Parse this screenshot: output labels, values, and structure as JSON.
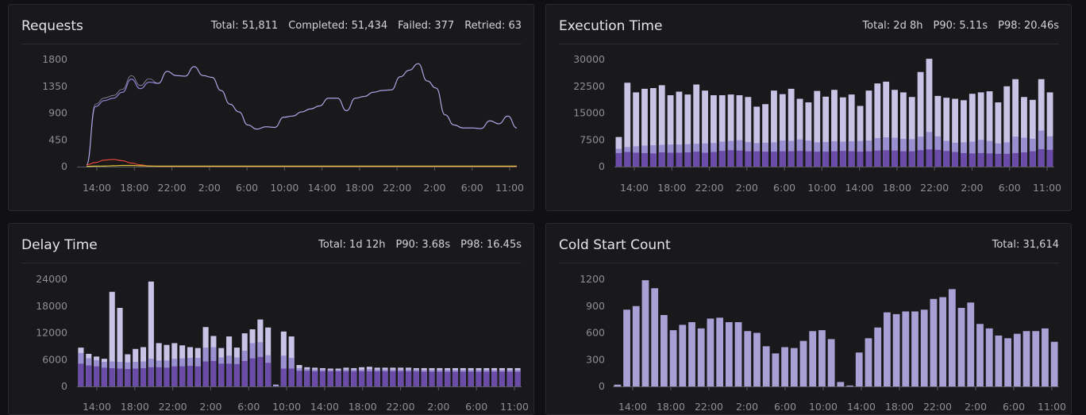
{
  "colors": {
    "background": "#111113",
    "panel": "#19191b",
    "requests_line": "#8d84d6",
    "failed_line": "#e0453a",
    "retried_line": "#e2c23a",
    "bar_light": "#c9c3e6",
    "bar_mid": "#9a8fd0",
    "bar_dark": "#6a4ba8",
    "cold_bar": "#a9a1d6"
  },
  "requests": {
    "title": "Requests",
    "stats": [
      "Total: 51,811",
      "Completed: 51,434",
      "Failed: 377",
      "Retried: 63"
    ],
    "chart_data": {
      "type": "line",
      "yticks": [
        "0",
        "450",
        "900",
        "1350",
        "1800"
      ],
      "xticks": [
        "14:00",
        "18:00",
        "22:00",
        "2:00",
        "6:00",
        "10:00",
        "14:00",
        "18:00",
        "22:00",
        "2:00",
        "6:00",
        "11:00"
      ],
      "ylim": [
        0,
        1800
      ],
      "series": [
        {
          "name": "Completed",
          "values": [
            30,
            1010,
            1110,
            1150,
            1250,
            1470,
            1310,
            1420,
            1400,
            1600,
            1530,
            1520,
            1680,
            1530,
            1500,
            1280,
            1050,
            920,
            700,
            630,
            670,
            660,
            830,
            850,
            920,
            970,
            1020,
            1150,
            1150,
            940,
            1150,
            1180,
            1250,
            1280,
            1290,
            1510,
            1620,
            1730,
            1440,
            1320,
            870,
            700,
            650,
            650,
            640,
            770,
            720,
            850,
            650
          ]
        },
        {
          "name": "Failed",
          "values": [
            30,
            70,
            110,
            120,
            100,
            60,
            30,
            10,
            5,
            5,
            5,
            5,
            5,
            5,
            5,
            5,
            5,
            5,
            5,
            5,
            5,
            5,
            5,
            5,
            5,
            5,
            5,
            5,
            5,
            5,
            5,
            5,
            5,
            5,
            5,
            5,
            5,
            5,
            5,
            5,
            5,
            5,
            5,
            5,
            5,
            5,
            5,
            5,
            5
          ]
        },
        {
          "name": "Retried",
          "values": [
            5,
            8,
            10,
            15,
            20,
            20,
            15,
            10,
            8,
            8,
            8,
            8,
            8,
            8,
            8,
            8,
            8,
            8,
            8,
            8,
            8,
            8,
            8,
            8,
            8,
            8,
            8,
            8,
            8,
            8,
            8,
            8,
            8,
            8,
            8,
            8,
            8,
            8,
            8,
            8,
            8,
            8,
            8,
            8,
            8,
            8,
            8,
            8,
            8
          ]
        }
      ]
    }
  },
  "execution": {
    "title": "Execution Time",
    "stats": [
      "Total: 2d 8h",
      "P90: 5.11s",
      "P98: 20.46s"
    ],
    "chart_data": {
      "type": "bar",
      "yticks": [
        "0",
        "7500",
        "15000",
        "22500",
        "30000"
      ],
      "xticks": [
        "14:00",
        "18:00",
        "22:00",
        "2:00",
        "6:00",
        "10:00",
        "14:00",
        "18:00",
        "22:00",
        "2:00",
        "6:00",
        "11:00"
      ],
      "ylim": [
        0,
        30000
      ],
      "stack_light": [
        8300,
        23500,
        20800,
        21800,
        22000,
        22800,
        20000,
        21000,
        20200,
        23000,
        21300,
        20000,
        20000,
        20200,
        20000,
        19500,
        16800,
        17500,
        21300,
        20300,
        21800,
        19000,
        18000,
        21200,
        19600,
        21500,
        19400,
        20200,
        17000,
        21300,
        23300,
        23800,
        21500,
        20800,
        19500,
        26500,
        30200,
        19800,
        19300,
        19000,
        18600,
        20400,
        20800,
        21100,
        18000,
        22500,
        24500,
        19500,
        18700,
        24500,
        20800
      ],
      "stack_mid": [
        5000,
        5500,
        5700,
        5900,
        6000,
        6100,
        6200,
        6200,
        6300,
        6400,
        6500,
        6600,
        7000,
        7200,
        7400,
        6900,
        6600,
        6700,
        6800,
        7300,
        7200,
        7600,
        7300,
        6800,
        6900,
        7100,
        7000,
        7100,
        7200,
        7300,
        8000,
        8200,
        8100,
        7800,
        7700,
        8400,
        9700,
        8500,
        7200,
        6700,
        6800,
        7000,
        7500,
        7200,
        6500,
        6800,
        8400,
        8100,
        7800,
        10100,
        8500
      ],
      "stack_dark": [
        3800,
        4100,
        3900,
        3800,
        3700,
        4000,
        3900,
        3900,
        4000,
        4200,
        3900,
        4100,
        4400,
        4600,
        4500,
        4300,
        4300,
        4200,
        4200,
        4300,
        4300,
        4400,
        4300,
        4200,
        4200,
        4300,
        4400,
        4300,
        4200,
        4300,
        4500,
        4600,
        4500,
        4300,
        4300,
        4600,
        4800,
        4700,
        4400,
        4100,
        3800,
        3700,
        3800,
        3700,
        3600,
        3600,
        3800,
        4000,
        4300,
        4900,
        4700
      ]
    }
  },
  "delay": {
    "title": "Delay Time",
    "stats": [
      "Total: 1d 12h",
      "P90: 3.68s",
      "P98: 16.45s"
    ],
    "chart_data": {
      "type": "bar",
      "yticks": [
        "0",
        "6000",
        "12000",
        "18000",
        "24000"
      ],
      "xticks": [
        "14:00",
        "18:00",
        "22:00",
        "2:00",
        "6:00",
        "10:00",
        "14:00",
        "18:00",
        "22:00",
        "2:00",
        "6:00",
        "11:00"
      ],
      "ylim": [
        0,
        24000
      ],
      "stack_light": [
        8700,
        7300,
        6700,
        6200,
        21200,
        17600,
        7200,
        8400,
        8800,
        23500,
        9700,
        9300,
        9700,
        9200,
        8800,
        8600,
        13300,
        11300,
        8600,
        11200,
        8700,
        11900,
        12800,
        15000,
        13200,
        400,
        12300,
        11200,
        4800,
        4300,
        4200,
        4100,
        4000,
        4000,
        4200,
        4100,
        4300,
        4400,
        4200,
        4200,
        4200,
        4200,
        4200,
        4100,
        4100,
        4100,
        4100,
        4100,
        4100,
        4100,
        4100,
        4100,
        4100,
        4100,
        4100,
        4100,
        4100
      ],
      "stack_mid": [
        7500,
        6300,
        5900,
        5500,
        5600,
        5500,
        5400,
        5500,
        5600,
        6200,
        5800,
        5800,
        6200,
        6300,
        6400,
        6400,
        8700,
        8800,
        6500,
        6900,
        6500,
        8000,
        9700,
        9900,
        7000,
        200,
        6900,
        6400,
        4100,
        3900,
        3800,
        3800,
        3700,
        3700,
        3800,
        3800,
        3800,
        3900,
        3800,
        3800,
        3800,
        3800,
        3800,
        3800,
        3700,
        3700,
        3700,
        3700,
        3700,
        3700,
        3700,
        3700,
        3700,
        3700,
        3700,
        3700,
        3700
      ],
      "stack_dark": [
        5100,
        4700,
        4500,
        4200,
        4100,
        4000,
        3900,
        4000,
        4100,
        4300,
        4300,
        4200,
        4500,
        4500,
        4600,
        4500,
        5600,
        5700,
        5100,
        5100,
        5000,
        5700,
        6300,
        6600,
        5300,
        100,
        4000,
        4000,
        3500,
        3500,
        3400,
        3400,
        3400,
        3400,
        3400,
        3400,
        3400,
        3400,
        3400,
        3400,
        3400,
        3400,
        3400,
        3400,
        3300,
        3300,
        3300,
        3300,
        3300,
        3300,
        3300,
        3300,
        3300,
        3300,
        3300,
        3300,
        3300
      ]
    }
  },
  "cold": {
    "title": "Cold Start Count",
    "stats": [
      "Total: 31,614"
    ],
    "chart_data": {
      "type": "bar",
      "yticks": [
        "0",
        "300",
        "600",
        "900",
        "1200"
      ],
      "xticks": [
        "14:00",
        "18:00",
        "22:00",
        "2:00",
        "6:00",
        "10:00",
        "14:00",
        "18:00",
        "22:00",
        "2:00",
        "6:00",
        "11:00"
      ],
      "ylim": [
        0,
        1200
      ],
      "values": [
        20,
        860,
        900,
        1190,
        1100,
        800,
        630,
        690,
        720,
        650,
        760,
        770,
        720,
        720,
        620,
        600,
        450,
        370,
        440,
        430,
        510,
        620,
        630,
        530,
        50,
        10,
        380,
        540,
        660,
        830,
        810,
        840,
        840,
        860,
        980,
        1000,
        1090,
        880,
        940,
        700,
        650,
        570,
        540,
        590,
        620,
        620,
        650,
        500
      ]
    }
  }
}
